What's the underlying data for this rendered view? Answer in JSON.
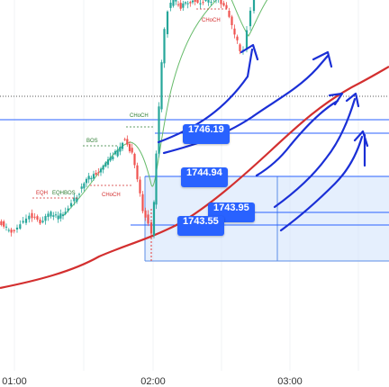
{
  "chart_data": {
    "type": "candlestick",
    "x_ticks": [
      "01:00",
      "02:00",
      "03:00"
    ],
    "price_tags": [
      {
        "label": "1746.19"
      },
      {
        "label": "1744.94"
      },
      {
        "label": "1743.95"
      },
      {
        "label": "1743.55"
      }
    ],
    "annotations": [
      {
        "label": "CHoCH",
        "color": "#d32f2f"
      },
      {
        "label": "CHoCH",
        "color": "#2e7d32"
      },
      {
        "label": "BOS",
        "color": "#2e7d32"
      },
      {
        "label": "CHoCH",
        "color": "#d32f2f"
      },
      {
        "label": "EQH",
        "color": "#d32f2f"
      },
      {
        "label": "EQHBOS",
        "color": "#2e7d32"
      }
    ],
    "colors": {
      "bull": "#26a69a",
      "bear": "#ef5350",
      "moving_average": "#d32f2f",
      "fast_average": "#66bb6a",
      "level_line": "#2962ff",
      "zone_fill": "#cfe2fb",
      "handwriting": "#1a2fd6"
    },
    "handwritten_arrows": 5
  }
}
